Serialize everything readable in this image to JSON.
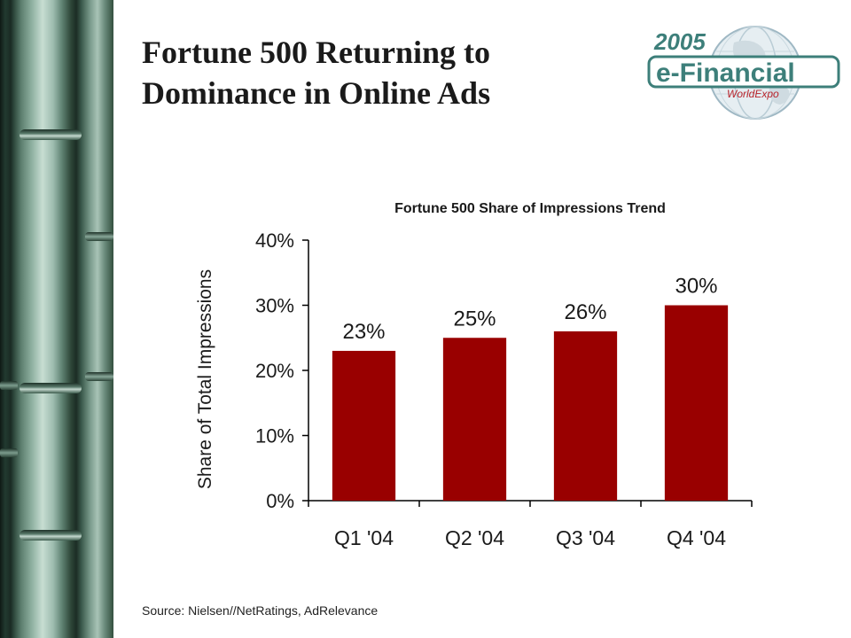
{
  "slide": {
    "title_line1": "Fortune 500 Returning to",
    "title_line2": "Dominance in Online Ads",
    "source": "Source: Nielsen//NetRatings, AdRelevance"
  },
  "logo": {
    "year": "2005",
    "brand": "e-Financial",
    "sub": "WorldExpo",
    "colors": {
      "teal": "#3d7f7a",
      "red": "#b8242b",
      "globe": "#9fb8c4"
    }
  },
  "chart_data": {
    "type": "bar",
    "title": "Fortune 500 Share of Impressions Trend",
    "ylabel": "Share of Total Impressions",
    "xlabel": "",
    "categories": [
      "Q1 '04",
      "Q2 '04",
      "Q3 '04",
      "Q4 '04"
    ],
    "values": [
      23,
      25,
      26,
      30
    ],
    "data_labels": [
      "23%",
      "25%",
      "26%",
      "30%"
    ],
    "ylim": [
      0,
      40
    ],
    "yticks": [
      0,
      10,
      20,
      30,
      40
    ],
    "ytick_labels": [
      "0%",
      "10%",
      "20%",
      "30%",
      "40%"
    ],
    "bar_color": "#990000",
    "grid": false,
    "legend": "none"
  }
}
